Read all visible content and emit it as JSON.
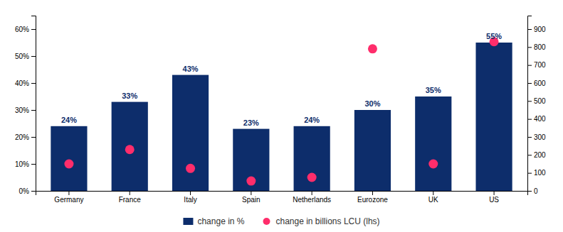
{
  "chart_data": {
    "type": "bar",
    "categories": [
      "Germany",
      "France",
      "Italy",
      "Spain",
      "Netherlands",
      "Eurozone",
      "UK",
      "US"
    ],
    "series": [
      {
        "name": "change in %",
        "type": "bar",
        "color": "#0d2d6b",
        "values": [
          24,
          33,
          43,
          23,
          24,
          30,
          35,
          55
        ],
        "value_labels": [
          "24%",
          "33%",
          "43%",
          "23%",
          "24%",
          "30%",
          "35%",
          "55%"
        ]
      },
      {
        "name": "change in billions LCU (lhs)",
        "type": "scatter",
        "color": "#ff2d6b",
        "marker": "circle",
        "axis": "y2",
        "values": [
          150,
          230,
          125,
          55,
          75,
          790,
          150,
          830
        ]
      }
    ],
    "ylim": [
      0,
      65
    ],
    "yticks": [
      {
        "value": 0,
        "label": "0%"
      },
      {
        "value": 10,
        "label": "10%"
      },
      {
        "value": 20,
        "label": "20%"
      },
      {
        "value": 30,
        "label": "30%"
      },
      {
        "value": 40,
        "label": "40%"
      },
      {
        "value": 50,
        "label": "50%"
      },
      {
        "value": 60,
        "label": "60%"
      }
    ],
    "y2lim": [
      0,
      975
    ],
    "y2ticks": [
      0,
      100,
      200,
      300,
      400,
      500,
      600,
      700,
      800,
      900
    ],
    "data_labels": true,
    "grid": false,
    "legend": "bottom"
  }
}
